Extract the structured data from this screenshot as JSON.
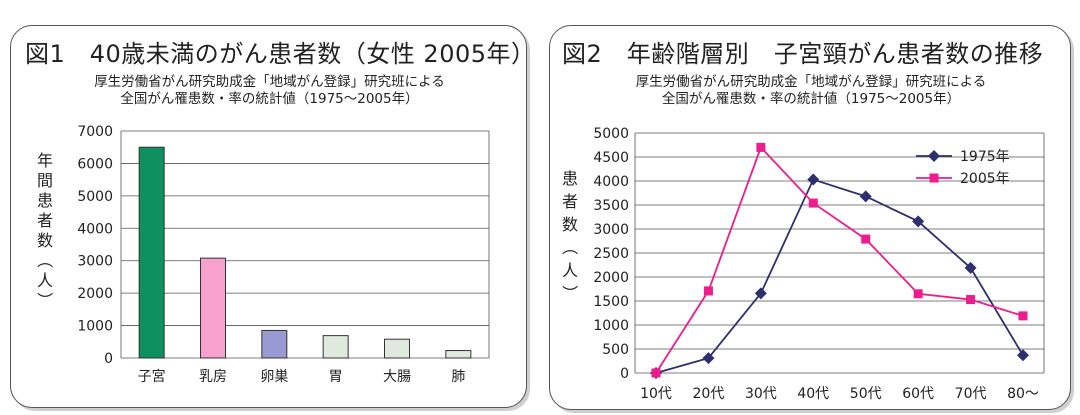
{
  "charts": [
    {
      "title": "図1　40歳未満のがん患者数（女性 2005年）",
      "source_line1": "厚生労働省がん研究助成金「地域がん登録」研究班による",
      "source_line2": "全国がん罹患数・率の統計値（1975〜2005年）",
      "ylabel": "年間患者数（人）"
    },
    {
      "title": "図2　年齢階層別　子宮頸がん患者数の推移",
      "source_line1": "厚生労働省がん研究助成金「地域がん登録」研究班による",
      "source_line2": "全国がん罹患数・率の統計値（1975〜2005年）",
      "ylabel": "患者数（人）"
    }
  ],
  "chart_data": [
    {
      "type": "bar",
      "title": "図1　40歳未満のがん患者数（女性 2005年）",
      "ylabel": "年間患者数（人）",
      "categories": [
        "子宮",
        "乳房",
        "卵巣",
        "胃",
        "大腸",
        "肺"
      ],
      "values": [
        6500,
        3080,
        850,
        690,
        580,
        230
      ],
      "bar_colors": [
        "#0f9060",
        "#f7a1cf",
        "#9a9ad2",
        "#dfe9dd",
        "#dfe9dd",
        "#dfe9dd"
      ],
      "ylim": [
        0,
        7000
      ],
      "yticks": [
        0,
        1000,
        2000,
        3000,
        4000,
        5000,
        6000,
        7000
      ],
      "grid": true
    },
    {
      "type": "line",
      "title": "図2　年齢階層別　子宮頸がん患者数の推移",
      "ylabel": "患者数（人）",
      "categories": [
        "10代",
        "20代",
        "30代",
        "40代",
        "50代",
        "60代",
        "70代",
        "80〜"
      ],
      "series": [
        {
          "name": "1975年",
          "color": "#2e2f6e",
          "marker": "diamond",
          "values": [
            0,
            310,
            1660,
            4030,
            3680,
            3160,
            2190,
            370
          ]
        },
        {
          "name": "2005年",
          "color": "#ee1c8e",
          "marker": "square",
          "values": [
            0,
            1710,
            4700,
            3540,
            2790,
            1650,
            1530,
            1190
          ]
        }
      ],
      "ylim": [
        0,
        5000
      ],
      "yticks": [
        0,
        500,
        1000,
        1500,
        2000,
        2500,
        3000,
        3500,
        4000,
        4500,
        5000
      ],
      "grid": true,
      "legend_position": "top-right"
    }
  ]
}
